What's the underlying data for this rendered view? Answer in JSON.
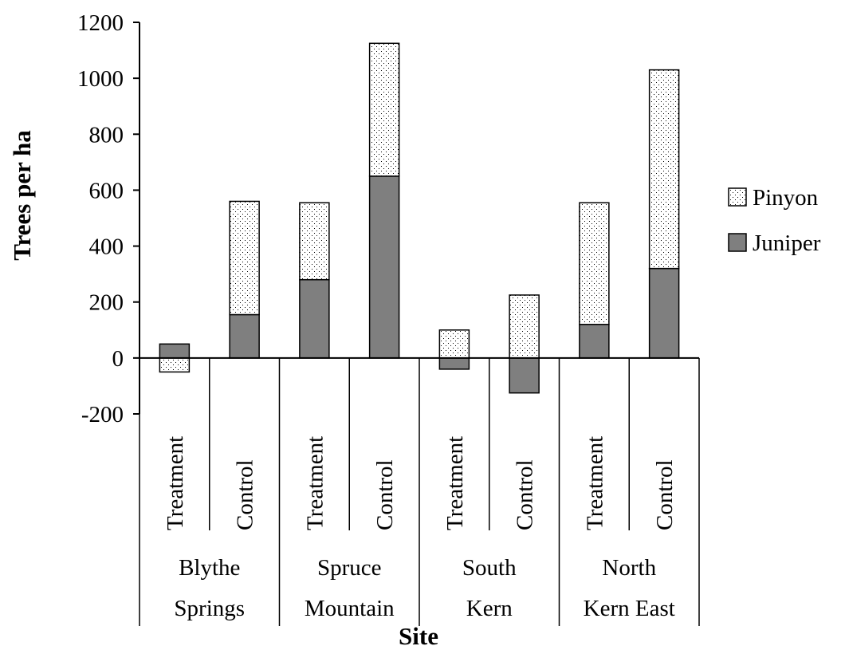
{
  "chart_data": {
    "type": "bar",
    "stacked": true,
    "ylabel": "Trees per ha",
    "xlabel": "Site",
    "ylim": [
      -200,
      1200
    ],
    "yticks": [
      -200,
      0,
      200,
      400,
      600,
      800,
      1000,
      1200
    ],
    "categories": [
      "Treatment",
      "Control",
      "Treatment",
      "Control",
      "Treatment",
      "Control",
      "Treatment",
      "Control"
    ],
    "groups": [
      {
        "line1": "Blythe",
        "line2": "Springs",
        "span": [
          0,
          1
        ]
      },
      {
        "line1": "Spruce",
        "line2": "Mountain",
        "span": [
          2,
          3
        ]
      },
      {
        "line1": "South",
        "line2": "Kern",
        "span": [
          4,
          5
        ]
      },
      {
        "line1": "North",
        "line2": "Kern East",
        "span": [
          6,
          7
        ]
      }
    ],
    "series": [
      {
        "name": "Juniper",
        "color": "#7f7f7f",
        "pattern": "solid",
        "values": [
          50,
          155,
          280,
          650,
          -40,
          -125,
          120,
          320
        ]
      },
      {
        "name": "Pinyon",
        "color": "#ffffff",
        "pattern": "dotted",
        "values": [
          -50,
          405,
          275,
          475,
          100,
          225,
          435,
          710
        ]
      }
    ],
    "legend": {
      "position": "right",
      "order": [
        "Pinyon",
        "Juniper"
      ]
    },
    "grid": false
  }
}
